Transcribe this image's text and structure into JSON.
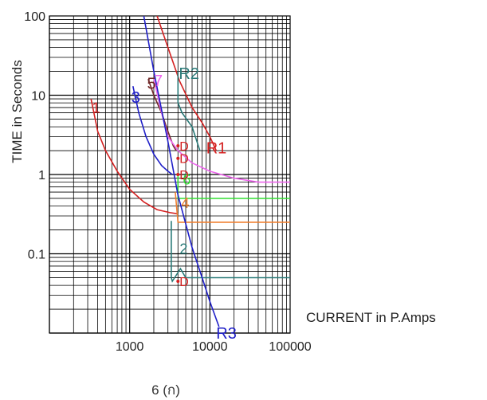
{
  "chart_data": {
    "type": "line",
    "title": "",
    "xlabel": "CURRENT in P.Amps",
    "ylabel": "TIME in Seconds",
    "caption": "6 (ก)",
    "xscale": "log",
    "yscale": "log",
    "xlim": [
      100,
      100000
    ],
    "ylim": [
      0.01,
      100
    ],
    "xticks": [
      {
        "value": 1000,
        "label": "1000"
      },
      {
        "value": 10000,
        "label": "10000"
      },
      {
        "value": 100000,
        "label": "100000"
      }
    ],
    "yticks": [
      {
        "value": 100,
        "label": "100"
      },
      {
        "value": 10,
        "label": "10"
      },
      {
        "value": 1,
        "label": "1"
      },
      {
        "value": 0.1,
        "label": "0.1"
      }
    ],
    "grid": true,
    "series": [
      {
        "name": "1",
        "color": "#d42020",
        "x": [
          330,
          400,
          500,
          700,
          1000,
          1500,
          2200,
          3200,
          3900
        ],
        "y": [
          9,
          3.5,
          2,
          1.1,
          0.65,
          0.45,
          0.36,
          0.33,
          0.32
        ]
      },
      {
        "name": "2",
        "color": "#2a7a78",
        "x": [
          3300,
          3300,
          3300,
          3400,
          4300,
          5000,
          7000,
          100000
        ],
        "y": [
          0.26,
          0.1,
          0.05,
          0.045,
          0.065,
          0.05,
          0.05,
          0.05
        ]
      },
      {
        "name": "3",
        "color": "#2020c8",
        "x": [
          1100,
          1300,
          1600,
          2000,
          2500,
          3000,
          3400
        ],
        "y": [
          13,
          6,
          3,
          1.8,
          1.3,
          1.1,
          1.0
        ]
      },
      {
        "name": "4",
        "color": "#f08030",
        "x": [
          3700,
          4000,
          5000,
          10000,
          100000
        ],
        "y": [
          0.6,
          0.25,
          0.25,
          0.25,
          0.25
        ]
      },
      {
        "name": "5",
        "color": "#702828",
        "x": [
          1700,
          2000,
          2500,
          3000,
          3500,
          3800
        ],
        "y": [
          16,
          10,
          6,
          3.5,
          2.3,
          2.0
        ]
      },
      {
        "name": "6",
        "color": "#33dd33",
        "x": [
          4000,
          4000,
          5000,
          10000,
          100000
        ],
        "y": [
          1.0,
          0.5,
          0.5,
          0.5,
          0.5
        ]
      },
      {
        "name": "7",
        "color": "#ee66ee",
        "x": [
          2000,
          2500,
          3000,
          4000,
          6000,
          10000,
          20000,
          40000,
          100000
        ],
        "y": [
          16,
          6,
          3,
          2,
          1.4,
          1.1,
          0.9,
          0.8,
          0.8
        ]
      },
      {
        "name": "R1",
        "color": "#d42020",
        "x": [
          2200,
          3000,
          4200,
          6000,
          8000,
          10000,
          12000
        ],
        "y": [
          100,
          40,
          15,
          7,
          4.5,
          3,
          2
        ]
      },
      {
        "name": "R2",
        "color": "#2a7a78",
        "x": [
          4000,
          4000,
          4500,
          6000,
          7500
        ],
        "y": [
          20,
          8,
          6,
          4,
          2
        ]
      },
      {
        "name": "R3",
        "color": "#2020c8",
        "x": [
          1500,
          2000,
          3000,
          4000,
          6000,
          8000,
          10000,
          13000
        ],
        "y": [
          100,
          20,
          2.6,
          0.55,
          0.12,
          0.05,
          0.025,
          0.012
        ]
      }
    ],
    "markers": [
      {
        "label": "D",
        "color": "#d42020",
        "x": 4000,
        "y": 2.3
      },
      {
        "label": "D",
        "color": "#d42020",
        "x": 4000,
        "y": 1.6
      },
      {
        "label": "D",
        "color": "#d42020",
        "x": 4000,
        "y": 1.0
      },
      {
        "label": "D",
        "color": "#d42020",
        "x": 4000,
        "y": 0.045
      }
    ]
  }
}
